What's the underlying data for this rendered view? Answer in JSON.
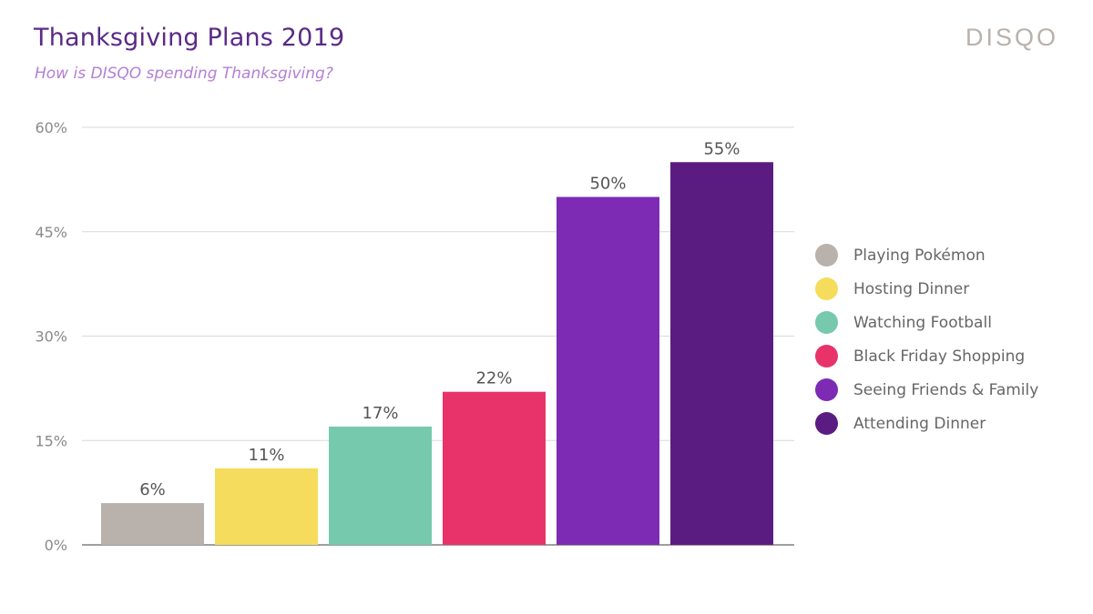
{
  "header": {
    "title": "Thanksgiving Plans 2019",
    "subtitle": "How is DISQO spending Thanksgiving?",
    "logo_text": "DISQO"
  },
  "chart_data": {
    "type": "bar",
    "categories": [
      "Playing Pokémon",
      "Hosting Dinner",
      "Watching Football",
      "Black Friday Shopping",
      "Seeing Friends & Family",
      "Attending Dinner"
    ],
    "values": [
      6,
      11,
      17,
      22,
      50,
      55
    ],
    "data_labels": [
      "6%",
      "11%",
      "17%",
      "22%",
      "50%",
      "55%"
    ],
    "colors": [
      "#b9b1ab",
      "#f6dc5c",
      "#76c9ac",
      "#e8336a",
      "#7d2bb4",
      "#5b1c82"
    ],
    "title": "Thanksgiving Plans 2019",
    "subtitle": "How is DISQO spending Thanksgiving?",
    "ylim": [
      0,
      60
    ],
    "yticks": [
      0,
      15,
      30,
      45,
      60
    ],
    "ytick_labels": [
      "0%",
      "15%",
      "30%",
      "45%",
      "60%"
    ],
    "grid": true,
    "legend_position": "right"
  }
}
